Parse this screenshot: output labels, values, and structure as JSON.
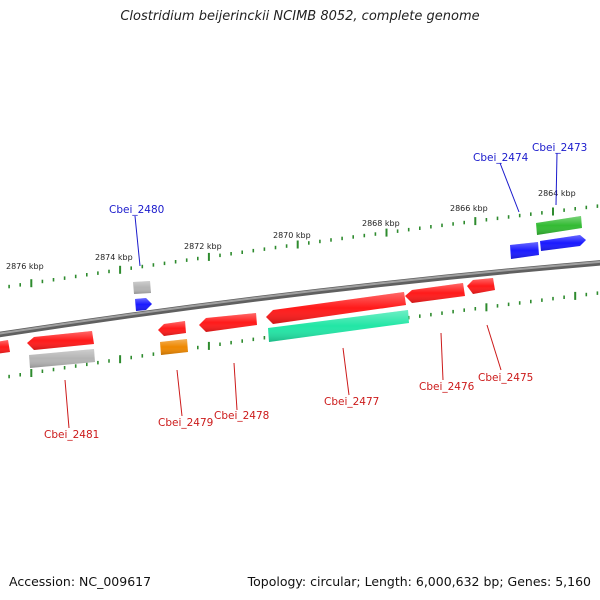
{
  "title": "Clostridium beijerinckii NCIMB 8052, complete genome",
  "footer": {
    "accession": "Accession: NC_009617",
    "summary": "Topology: circular; Length: 6,000,632 bp; Genes: 5,160"
  },
  "colors": {
    "backbone": "#808080",
    "tick": "#2e8b2e",
    "forward_label": "#1a1acc",
    "reverse_label": "#cc1a1a",
    "cds_red": "#ff1a1a",
    "cds_blue": "#1a1aff",
    "cds_green": "#33bb33",
    "cds_gray": "#b4b4b4",
    "cds_orange": "#ee8800",
    "cds_teal": "#22e6a6"
  },
  "kbp_labels": [
    "2864 kbp",
    "2866 kbp",
    "2868 kbp",
    "2870 kbp",
    "2872 kbp",
    "2874 kbp",
    "2876 kbp"
  ],
  "forward_genes": [
    {
      "label": "Cbei_2473"
    },
    {
      "label": "Cbei_2474"
    },
    {
      "label": "Cbei_2480"
    }
  ],
  "reverse_genes": [
    {
      "label": "Cbei_2475"
    },
    {
      "label": "Cbei_2476"
    },
    {
      "label": "Cbei_2477"
    },
    {
      "label": "Cbei_2478"
    },
    {
      "label": "Cbei_2479"
    },
    {
      "label": "Cbei_2481"
    }
  ]
}
